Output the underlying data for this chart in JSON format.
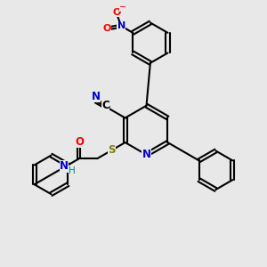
{
  "bg_color": "#e8e8e8",
  "bond_color": "#000000",
  "N_color": "#0000cc",
  "O_color": "#ff0000",
  "S_color": "#808000",
  "C_color": "#000000",
  "H_color": "#008080",
  "line_width": 1.5,
  "dbo": 0.07,
  "figsize": [
    3.0,
    3.0
  ],
  "dpi": 100,
  "xlim": [
    0,
    10
  ],
  "ylim": [
    0,
    10
  ]
}
